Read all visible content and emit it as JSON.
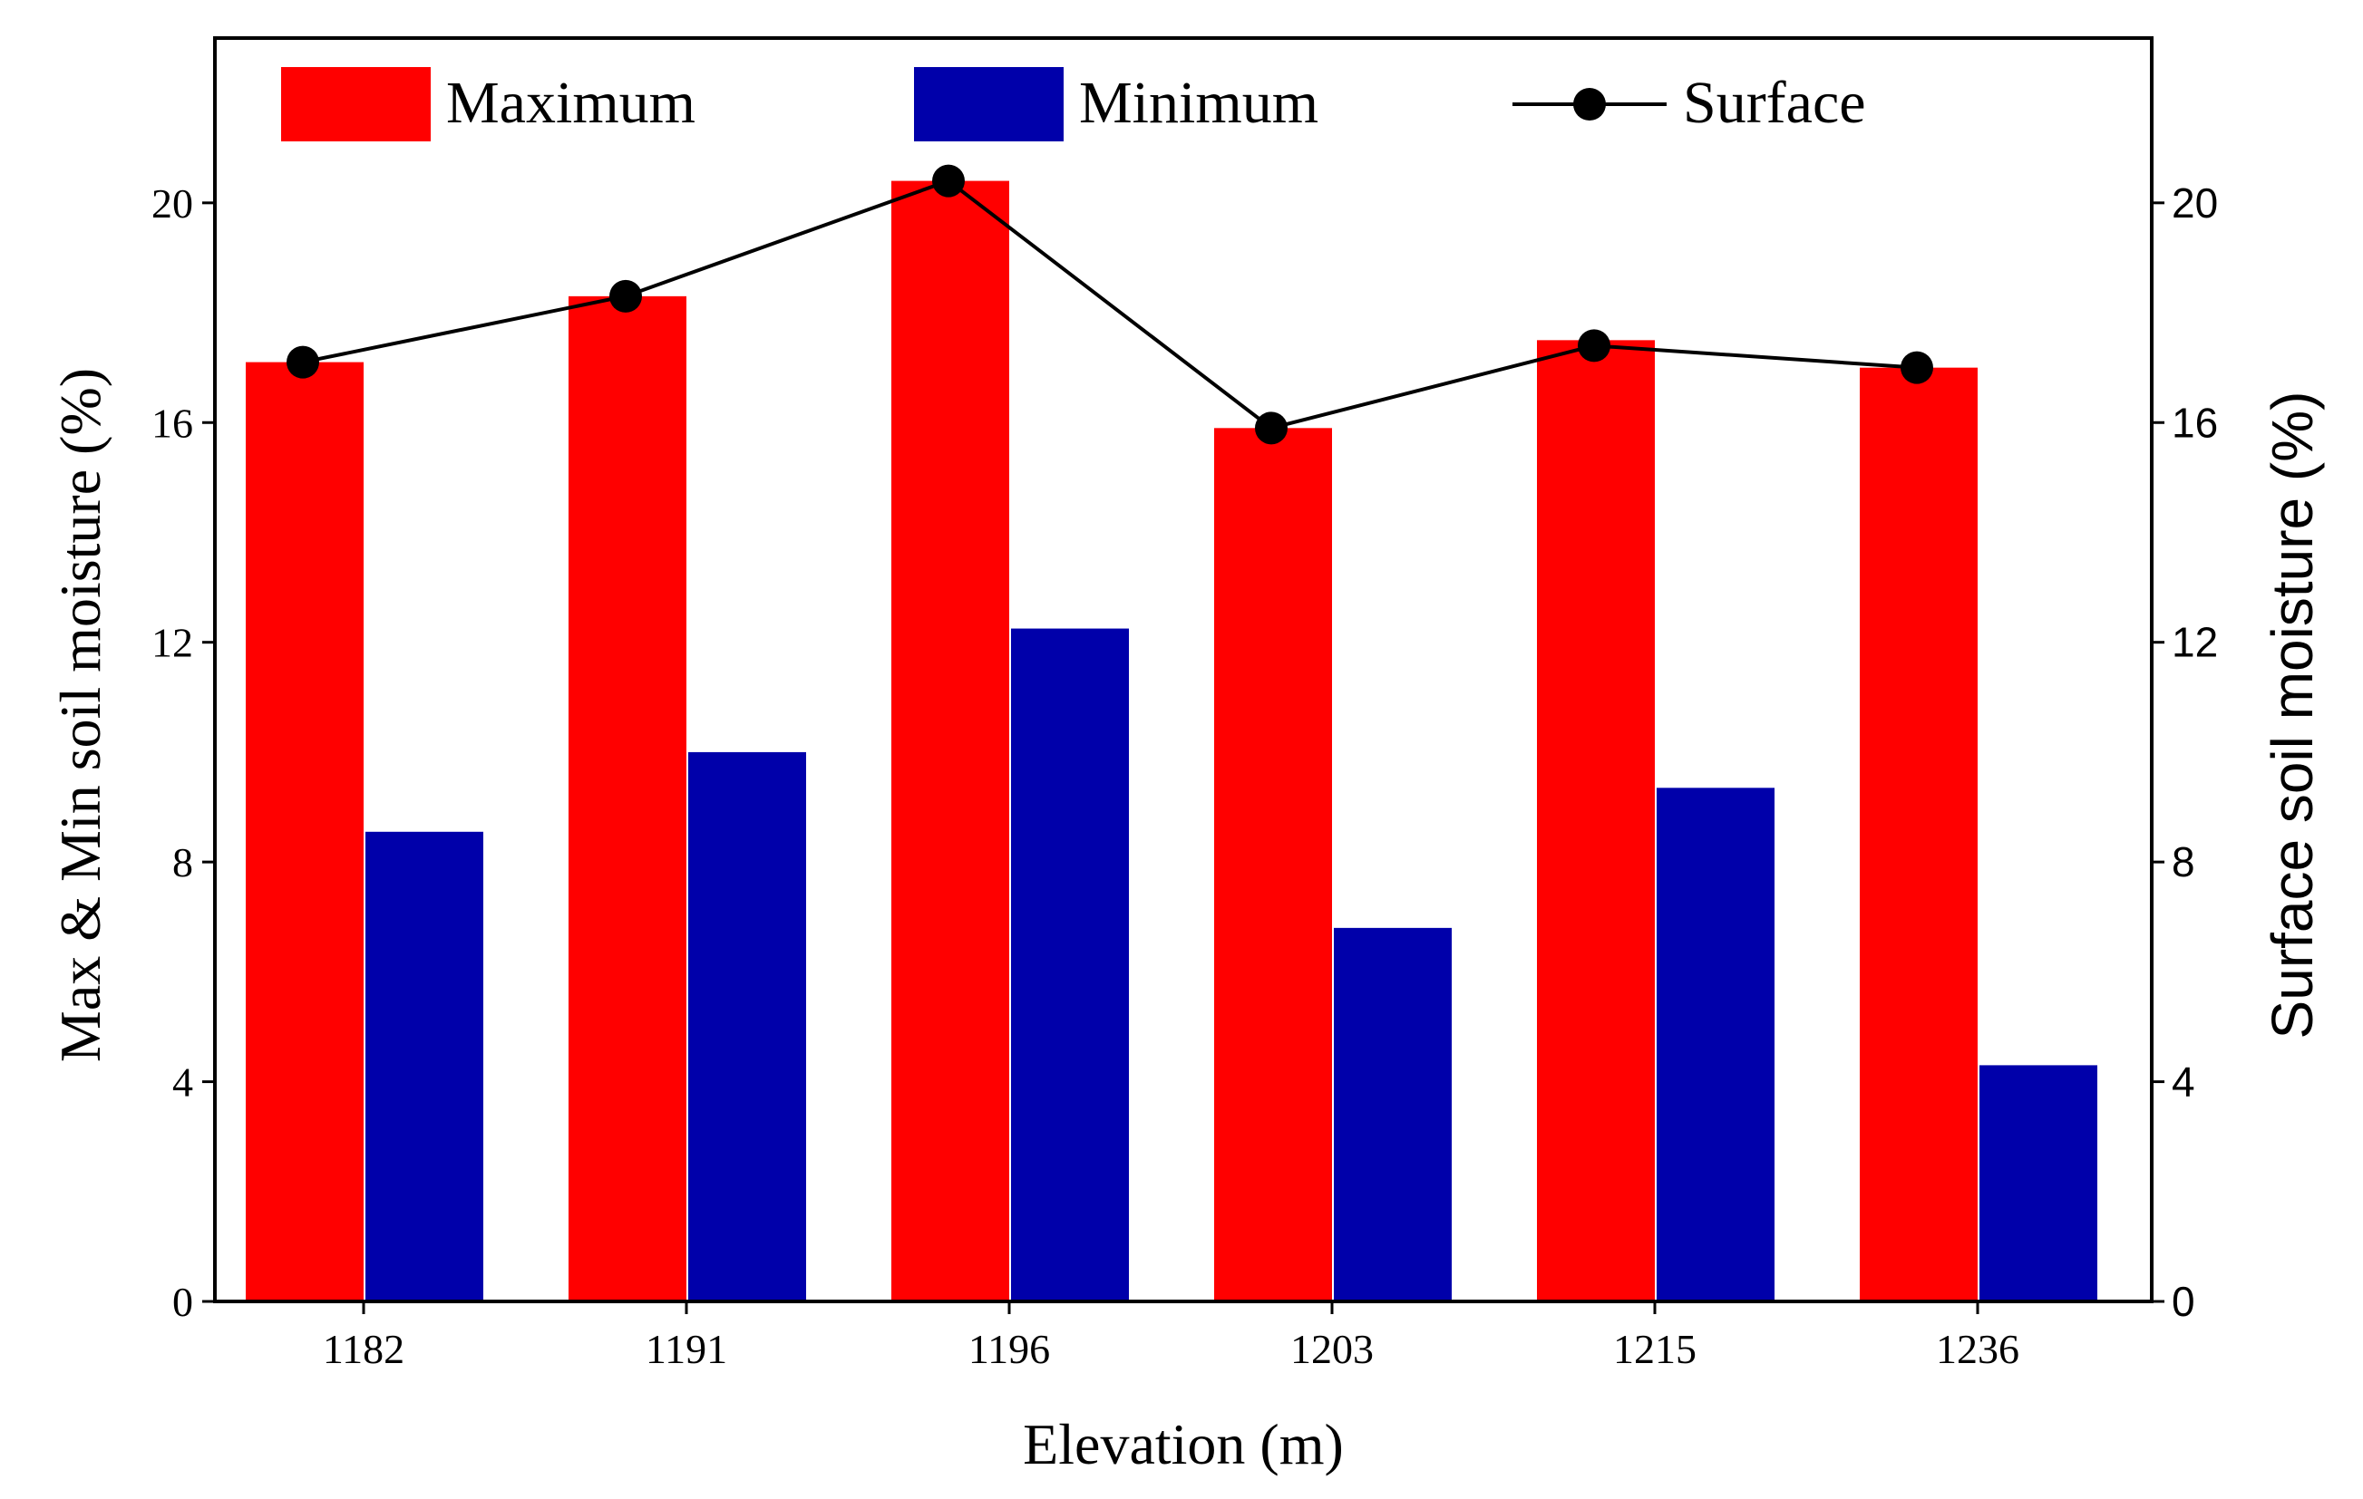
{
  "chart_data": {
    "type": "bar",
    "categories": [
      "1182",
      "1191",
      "1196",
      "1203",
      "1215",
      "1236"
    ],
    "xlabel": "Elevation (m)",
    "ylabel_left": "Max & Min soil moisture (%)",
    "ylabel_right": "Surface soil moisture (%)",
    "ylim_left": [
      0,
      23
    ],
    "ylim_right": [
      0,
      23
    ],
    "yticks_left": [
      0,
      4,
      8,
      12,
      16,
      20
    ],
    "yticks_right": [
      0,
      4,
      8,
      12,
      16,
      20
    ],
    "legend_position": "top",
    "grid": false,
    "series": [
      {
        "name": "Maximum",
        "type": "bar",
        "color": "#ff0000",
        "axis": "left",
        "values": [
          17.1,
          18.3,
          20.4,
          15.9,
          17.5,
          17.0
        ]
      },
      {
        "name": "Minimum",
        "type": "bar",
        "color": "#0000aa",
        "axis": "left",
        "values": [
          8.55,
          10.0,
          12.25,
          6.8,
          9.35,
          4.3
        ]
      },
      {
        "name": "Surface",
        "type": "line",
        "color": "#000000",
        "axis": "right",
        "values": [
          17.1,
          18.3,
          20.4,
          15.9,
          17.4,
          17.0
        ]
      }
    ]
  }
}
